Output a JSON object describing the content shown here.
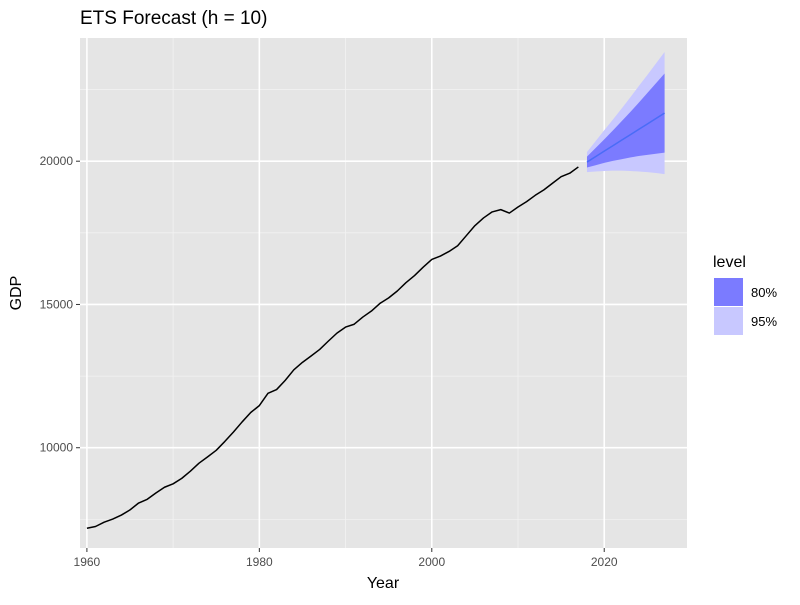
{
  "chart_data": {
    "type": "line",
    "title": "ETS Forecast (h = 10)",
    "xlabel": "Year",
    "ylabel": "GDP",
    "xlim": [
      1959.2,
      2029.6
    ],
    "ylim": [
      6500,
      24300
    ],
    "x_ticks": [
      1960,
      1980,
      2000,
      2020
    ],
    "x_tick_labels": [
      "1960",
      "1980",
      "2000",
      "2020"
    ],
    "y_ticks": [
      10000,
      15000,
      20000
    ],
    "y_tick_labels": [
      "10000",
      "15000",
      "20000"
    ],
    "grid": true,
    "legend_position": "right",
    "legend_title": "level",
    "series": [
      {
        "type": "line",
        "x": [
          1960,
          1961,
          1962,
          1963,
          1964,
          1965,
          1966,
          1967,
          1968,
          1969,
          1970,
          1971,
          1972,
          1973,
          1974,
          1975,
          1976,
          1977,
          1978,
          1979,
          1980,
          1981,
          1982,
          1983,
          1984,
          1985,
          1986,
          1987,
          1988,
          1989,
          1990,
          1991,
          1992,
          1993,
          1994,
          1995,
          1996,
          1997,
          1998,
          1999,
          2000,
          2001,
          2002,
          2003,
          2004,
          2005,
          2006,
          2007,
          2008,
          2009,
          2010,
          2011,
          2012,
          2013,
          2014,
          2015,
          2016,
          2017
        ],
        "values": [
          7190,
          7250,
          7400,
          7510,
          7650,
          7830,
          8070,
          8200,
          8420,
          8620,
          8740,
          8930,
          9180,
          9460,
          9680,
          9910,
          10220,
          10550,
          10900,
          11230,
          11470,
          11900,
          12030,
          12350,
          12720,
          12980,
          13200,
          13430,
          13720,
          14000,
          14210,
          14310,
          14560,
          14770,
          15040,
          15230,
          15470,
          15760,
          16010,
          16300,
          16570,
          16690,
          16850,
          17050,
          17400,
          17750,
          18020,
          18230,
          18310,
          18190,
          18400,
          18590,
          18810,
          19000,
          19230,
          19460,
          19580,
          19800
        ]
      },
      {
        "name": "forecast",
        "type": "line",
        "color": "#4a6cf7",
        "x": [
          2018,
          2019,
          2020,
          2021,
          2022,
          2023,
          2024,
          2025,
          2026,
          2027
        ],
        "values": [
          19970,
          20160,
          20350,
          20540,
          20730,
          20920,
          21110,
          21300,
          21490,
          21680
        ]
      }
    ],
    "bands": [
      {
        "name": "95%",
        "color": "#c8c8ff",
        "x": [
          2018,
          2019,
          2020,
          2021,
          2022,
          2023,
          2024,
          2025,
          2026,
          2027
        ],
        "lower": [
          19620,
          19640,
          19660,
          19670,
          19670,
          19660,
          19640,
          19620,
          19590,
          19550
        ],
        "upper": [
          20320,
          20700,
          21080,
          21450,
          21830,
          22220,
          22620,
          23010,
          23410,
          23810
        ]
      },
      {
        "name": "80%",
        "color": "#7b7bff",
        "x": [
          2018,
          2019,
          2020,
          2021,
          2022,
          2023,
          2024,
          2025,
          2026,
          2027
        ],
        "lower": [
          19780,
          19860,
          19940,
          20010,
          20070,
          20130,
          20180,
          20220,
          20260,
          20300
        ],
        "upper": [
          20160,
          20460,
          20760,
          21070,
          21390,
          21710,
          22040,
          22380,
          22720,
          23060
        ]
      }
    ],
    "legend": [
      {
        "label": "80%",
        "color": "#7b7bff"
      },
      {
        "label": "95%",
        "color": "#c8c8ff"
      }
    ]
  }
}
